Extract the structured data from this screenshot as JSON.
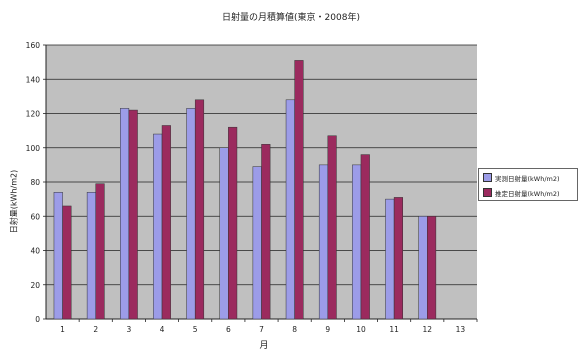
{
  "chart_data": {
    "type": "bar",
    "title": "日射量の月積算値(東京・2008年)",
    "xlabel": "月",
    "ylabel": "日射量(kWh/m2)",
    "categories": [
      "1",
      "2",
      "3",
      "4",
      "5",
      "6",
      "7",
      "8",
      "9",
      "10",
      "11",
      "12",
      "13"
    ],
    "ylim": [
      0,
      160
    ],
    "yticks": [
      0,
      20,
      40,
      60,
      80,
      100,
      120,
      140,
      160
    ],
    "grid": true,
    "legend_position": "right",
    "series": [
      {
        "name": "実測日射量(kWh/m2)",
        "color": "#9c9ce8",
        "values": [
          74,
          74,
          123,
          108,
          123,
          100,
          89,
          128,
          90,
          90,
          70,
          60,
          null
        ]
      },
      {
        "name": "推定日射量(kWh/m2)",
        "color": "#9b2a5e",
        "values": [
          66,
          79,
          122,
          113,
          128,
          112,
          102,
          151,
          107,
          96,
          71,
          60,
          null
        ]
      }
    ]
  }
}
